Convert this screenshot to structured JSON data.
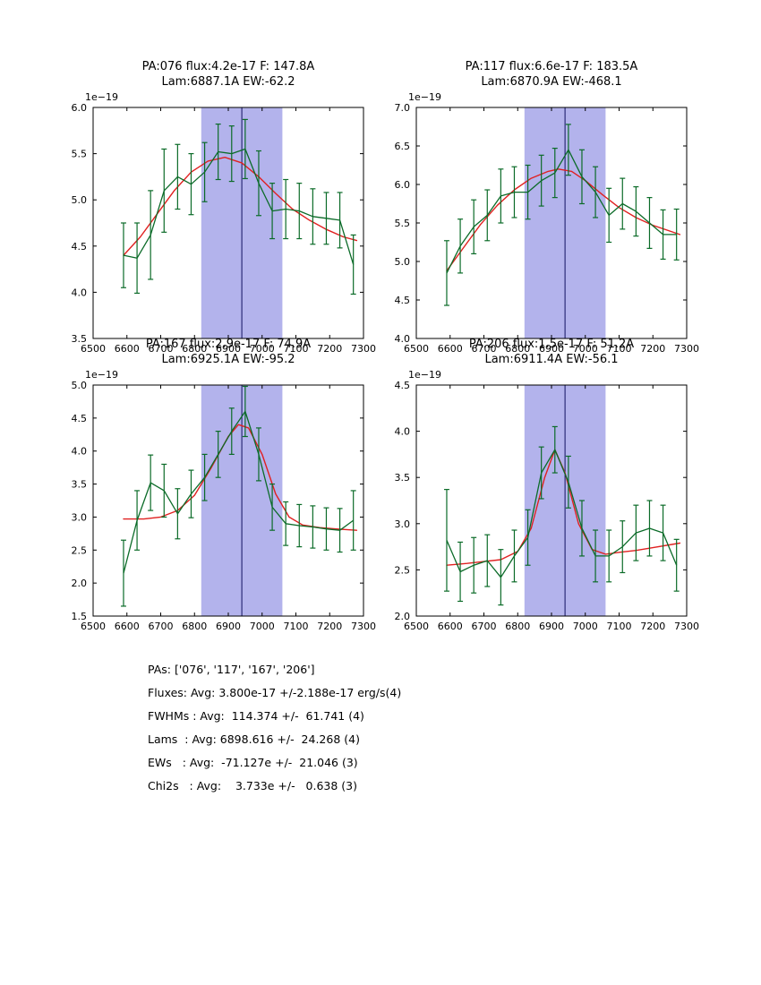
{
  "figure": {
    "background": "#ffffff",
    "colors": {
      "data_series": "#0b6b28",
      "fit_curve": "#e02020",
      "band_fill": "#b3b3ec",
      "vline": "#101060",
      "axis": "#000000"
    }
  },
  "summary": {
    "lines": [
      "PAs: ['076', '117', '167', '206']",
      "Fluxes: Avg: 3.800e-17 +/-2.188e-17 erg/s(4)",
      "FWHMs : Avg:  114.374 +/-  61.741 (4)",
      "Lams  : Avg: 6898.616 +/-  24.268 (4)",
      "EWs   : Avg:  -71.127e +/-  21.046 (3)",
      "Chi2s   : Avg:    3.733e +/-   0.638 (3)"
    ]
  },
  "chart_data": {
    "type": "line",
    "description": "2x2 grid of spectral line profiles with error bars, Gaussian fits (red), fit window band and center line",
    "x_units": "Angstrom",
    "y_units": "flux 1e-19 erg/s/cm2/A",
    "plots": [
      {
        "name": "PA076",
        "title_line1": "PA:076 flux:4.2e-17 F: 147.8A",
        "title_line2": "Lam:6887.1A EW:-62.2",
        "y_offset_label": "1e−19",
        "xlim": [
          6500,
          7300
        ],
        "ylim": [
          3.5,
          6.0
        ],
        "xticks": [
          6500,
          6600,
          6700,
          6800,
          6900,
          7000,
          7100,
          7200,
          7300
        ],
        "yticks": [
          3.5,
          4.0,
          4.5,
          5.0,
          5.5,
          6.0
        ],
        "band": [
          6820,
          7060
        ],
        "vline": 6940,
        "series": [
          {
            "name": "observed",
            "x": [
              6590,
              6630,
              6670,
              6710,
              6750,
              6790,
              6830,
              6870,
              6910,
              6950,
              6990,
              7030,
              7070,
              7110,
              7150,
              7190,
              7230,
              7270
            ],
            "y": [
              4.4,
              4.37,
              4.62,
              5.1,
              5.25,
              5.17,
              5.3,
              5.52,
              5.5,
              5.55,
              5.18,
              4.88,
              4.9,
              4.88,
              4.82,
              4.8,
              4.78,
              4.3
            ],
            "yerr": [
              0.35,
              0.38,
              0.48,
              0.45,
              0.35,
              0.33,
              0.32,
              0.3,
              0.3,
              0.32,
              0.35,
              0.3,
              0.32,
              0.3,
              0.3,
              0.28,
              0.3,
              0.32
            ]
          },
          {
            "name": "fit",
            "x": [
              6590,
              6640,
              6690,
              6740,
              6790,
              6840,
              6890,
              6940,
              6990,
              7040,
              7090,
              7140,
              7190,
              7240,
              7280
            ],
            "y": [
              4.4,
              4.6,
              4.85,
              5.1,
              5.3,
              5.42,
              5.46,
              5.4,
              5.25,
              5.07,
              4.9,
              4.78,
              4.68,
              4.6,
              4.56
            ]
          }
        ]
      },
      {
        "name": "PA117",
        "title_line1": "PA:117 flux:6.6e-17 F: 183.5A",
        "title_line2": "Lam:6870.9A EW:-468.1",
        "y_offset_label": "1e−19",
        "xlim": [
          6500,
          7300
        ],
        "ylim": [
          4.0,
          7.0
        ],
        "xticks": [
          6500,
          6600,
          6700,
          6800,
          6900,
          7000,
          7100,
          7200,
          7300
        ],
        "yticks": [
          4.0,
          4.5,
          5.0,
          5.5,
          6.0,
          6.5,
          7.0
        ],
        "band": [
          6820,
          7060
        ],
        "vline": 6940,
        "series": [
          {
            "name": "observed",
            "x": [
              6590,
              6630,
              6670,
              6710,
              6750,
              6790,
              6830,
              6870,
              6910,
              6950,
              6990,
              7030,
              7070,
              7110,
              7150,
              7190,
              7230,
              7270
            ],
            "y": [
              4.85,
              5.2,
              5.45,
              5.6,
              5.85,
              5.9,
              5.9,
              6.05,
              6.15,
              6.45,
              6.1,
              5.9,
              5.6,
              5.75,
              5.65,
              5.5,
              5.35,
              5.35
            ],
            "yerr": [
              0.42,
              0.35,
              0.35,
              0.33,
              0.35,
              0.33,
              0.35,
              0.33,
              0.32,
              0.33,
              0.35,
              0.33,
              0.35,
              0.33,
              0.32,
              0.33,
              0.32,
              0.33
            ]
          },
          {
            "name": "fit",
            "x": [
              6590,
              6640,
              6690,
              6740,
              6790,
              6840,
              6890,
              6920,
              6960,
              7000,
              7050,
              7100,
              7150,
              7200,
              7280
            ],
            "y": [
              4.88,
              5.18,
              5.48,
              5.73,
              5.93,
              6.08,
              6.17,
              6.2,
              6.17,
              6.05,
              5.87,
              5.7,
              5.57,
              5.47,
              5.35
            ]
          }
        ]
      },
      {
        "name": "PA167",
        "title_line1": "PA:167 flux:2.9e-17 F: 74.9A",
        "title_line2": "Lam:6925.1A EW:-95.2",
        "y_offset_label": "1e−19",
        "xlim": [
          6500,
          7300
        ],
        "ylim": [
          1.5,
          5.0
        ],
        "xticks": [
          6500,
          6600,
          6700,
          6800,
          6900,
          7000,
          7100,
          7200,
          7300
        ],
        "yticks": [
          1.5,
          2.0,
          2.5,
          3.0,
          3.5,
          4.0,
          4.5,
          5.0
        ],
        "band": [
          6820,
          7060
        ],
        "vline": 6940,
        "series": [
          {
            "name": "observed",
            "x": [
              6590,
              6630,
              6670,
              6710,
              6750,
              6790,
              6830,
              6870,
              6910,
              6950,
              6990,
              7030,
              7070,
              7110,
              7150,
              7190,
              7230,
              7270
            ],
            "y": [
              2.15,
              2.95,
              3.52,
              3.4,
              3.05,
              3.35,
              3.6,
              3.95,
              4.3,
              4.6,
              3.95,
              3.15,
              2.9,
              2.87,
              2.85,
              2.82,
              2.8,
              2.95
            ],
            "yerr": [
              0.5,
              0.45,
              0.42,
              0.4,
              0.38,
              0.36,
              0.35,
              0.35,
              0.35,
              0.38,
              0.4,
              0.35,
              0.33,
              0.32,
              0.32,
              0.32,
              0.33,
              0.45
            ]
          },
          {
            "name": "fit",
            "x": [
              6590,
              6650,
              6700,
              6750,
              6800,
              6850,
              6900,
              6930,
              6960,
              7000,
              7040,
              7080,
              7120,
              7170,
              7220,
              7280
            ],
            "y": [
              2.97,
              2.97,
              3.0,
              3.1,
              3.33,
              3.75,
              4.22,
              4.4,
              4.35,
              3.95,
              3.35,
              3.0,
              2.88,
              2.84,
              2.82,
              2.8
            ]
          }
        ]
      },
      {
        "name": "PA206",
        "title_line1": "PA:206 flux:1.5e-17 F: 51.2A",
        "title_line2": "Lam:6911.4A EW:-56.1",
        "y_offset_label": "1e−19",
        "xlim": [
          6500,
          7300
        ],
        "ylim": [
          2.0,
          4.5
        ],
        "xticks": [
          6500,
          6600,
          6700,
          6800,
          6900,
          7000,
          7100,
          7200,
          7300
        ],
        "yticks": [
          2.0,
          2.5,
          3.0,
          3.5,
          4.0,
          4.5
        ],
        "band": [
          6820,
          7060
        ],
        "vline": 6940,
        "series": [
          {
            "name": "observed",
            "x": [
              6590,
              6630,
              6670,
              6710,
              6750,
              6790,
              6830,
              6870,
              6910,
              6950,
              6990,
              7030,
              7070,
              7110,
              7150,
              7190,
              7230,
              7270
            ],
            "y": [
              2.82,
              2.48,
              2.55,
              2.6,
              2.42,
              2.65,
              2.85,
              3.55,
              3.8,
              3.45,
              2.95,
              2.65,
              2.65,
              2.75,
              2.9,
              2.95,
              2.9,
              2.55
            ],
            "yerr": [
              0.55,
              0.32,
              0.3,
              0.28,
              0.3,
              0.28,
              0.3,
              0.28,
              0.25,
              0.28,
              0.3,
              0.28,
              0.28,
              0.28,
              0.3,
              0.3,
              0.3,
              0.28
            ]
          },
          {
            "name": "fit",
            "x": [
              6590,
              6650,
              6700,
              6750,
              6800,
              6840,
              6880,
              6910,
              6940,
              6980,
              7020,
              7060,
              7100,
              7150,
              7200,
              7280
            ],
            "y": [
              2.55,
              2.57,
              2.59,
              2.61,
              2.7,
              2.95,
              3.5,
              3.8,
              3.55,
              3.0,
              2.72,
              2.67,
              2.69,
              2.71,
              2.74,
              2.79
            ]
          }
        ]
      }
    ]
  }
}
